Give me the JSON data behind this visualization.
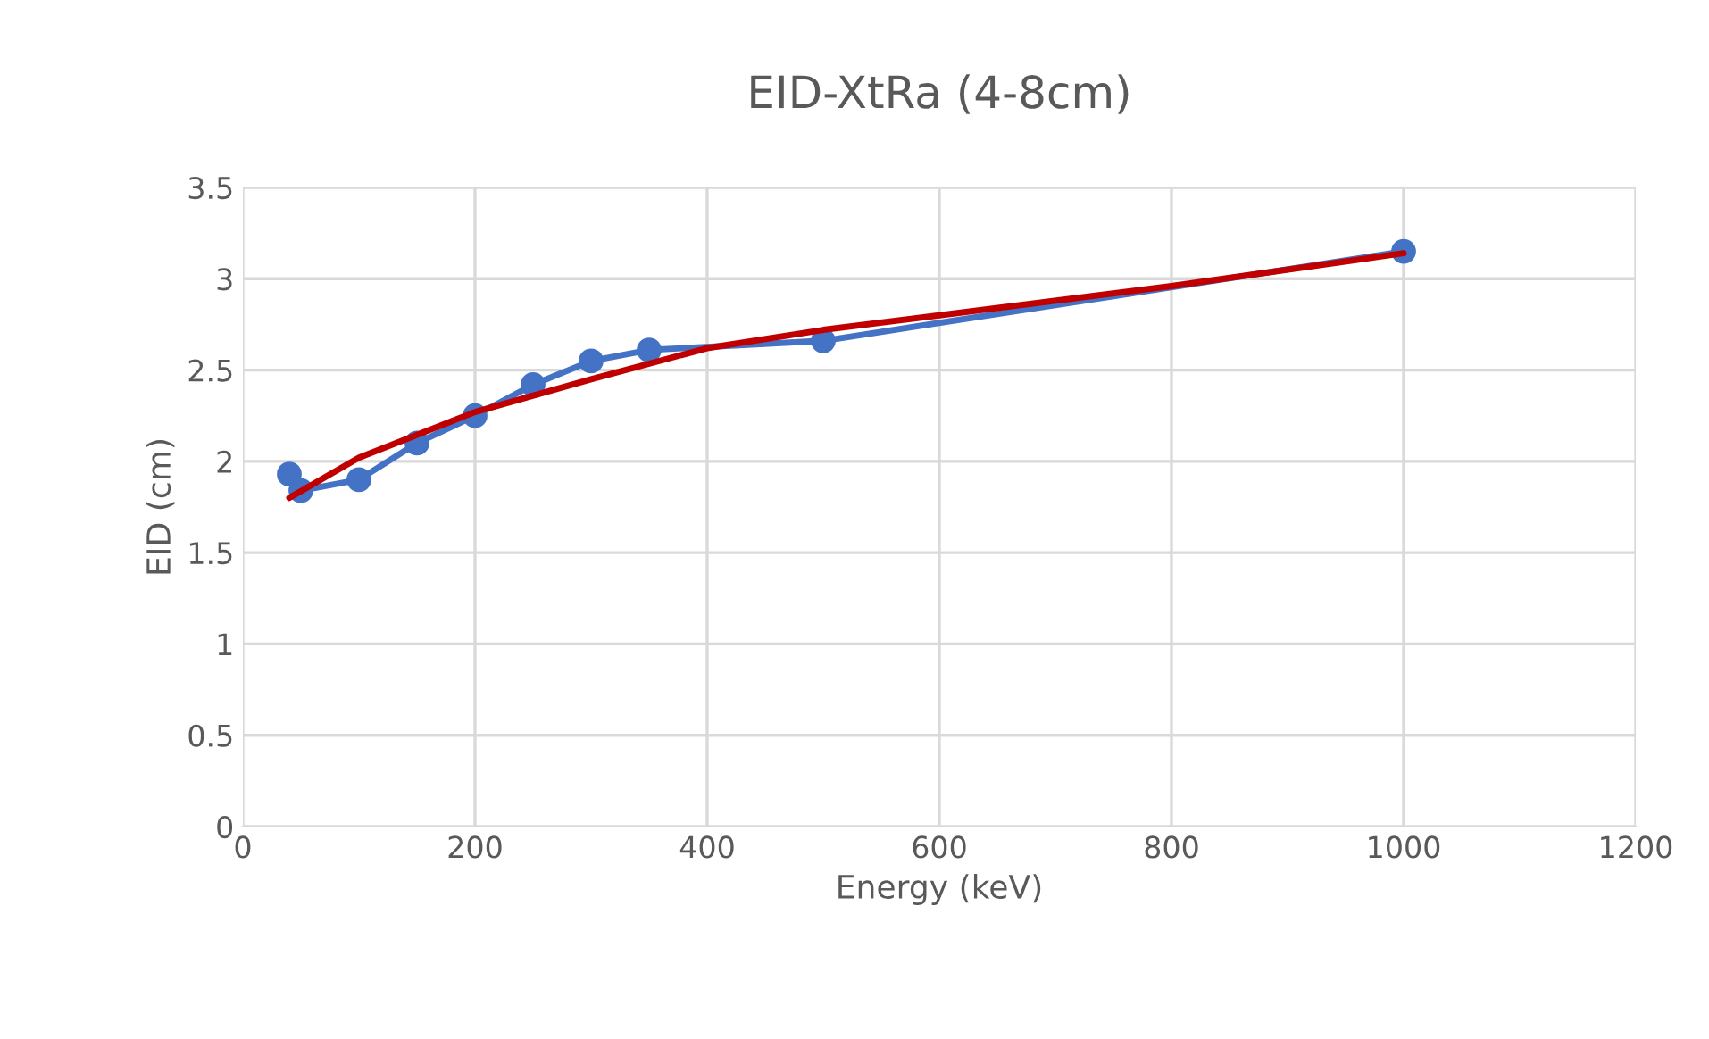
{
  "chart_data": {
    "type": "line",
    "title": "EID-XtRa (4-8cm)",
    "xlabel": "Energy (keV)",
    "ylabel": "EID (cm)",
    "series": [
      {
        "color": "#4472c4",
        "marker": "circle",
        "x": [
          40,
          50,
          100,
          150,
          200,
          250,
          300,
          350,
          500,
          1000
        ],
        "values": [
          1.93,
          1.84,
          1.9,
          2.1,
          2.25,
          2.42,
          2.55,
          2.61,
          2.66,
          3.15
        ]
      },
      {
        "color": "#c00000",
        "marker": "none",
        "x": [
          40,
          100,
          200,
          300,
          400,
          500,
          600,
          800,
          1000
        ],
        "values": [
          1.8,
          2.02,
          2.27,
          2.45,
          2.62,
          2.72,
          2.8,
          2.96,
          3.14
        ]
      }
    ],
    "xlim": [
      0,
      1200
    ],
    "xticks": [
      0,
      200,
      400,
      600,
      800,
      1000,
      1200
    ],
    "ylim": [
      0,
      3.5
    ],
    "yticks": [
      0,
      0.5,
      1,
      1.5,
      2,
      2.5,
      3,
      3.5
    ],
    "grid": true,
    "legend": false
  }
}
